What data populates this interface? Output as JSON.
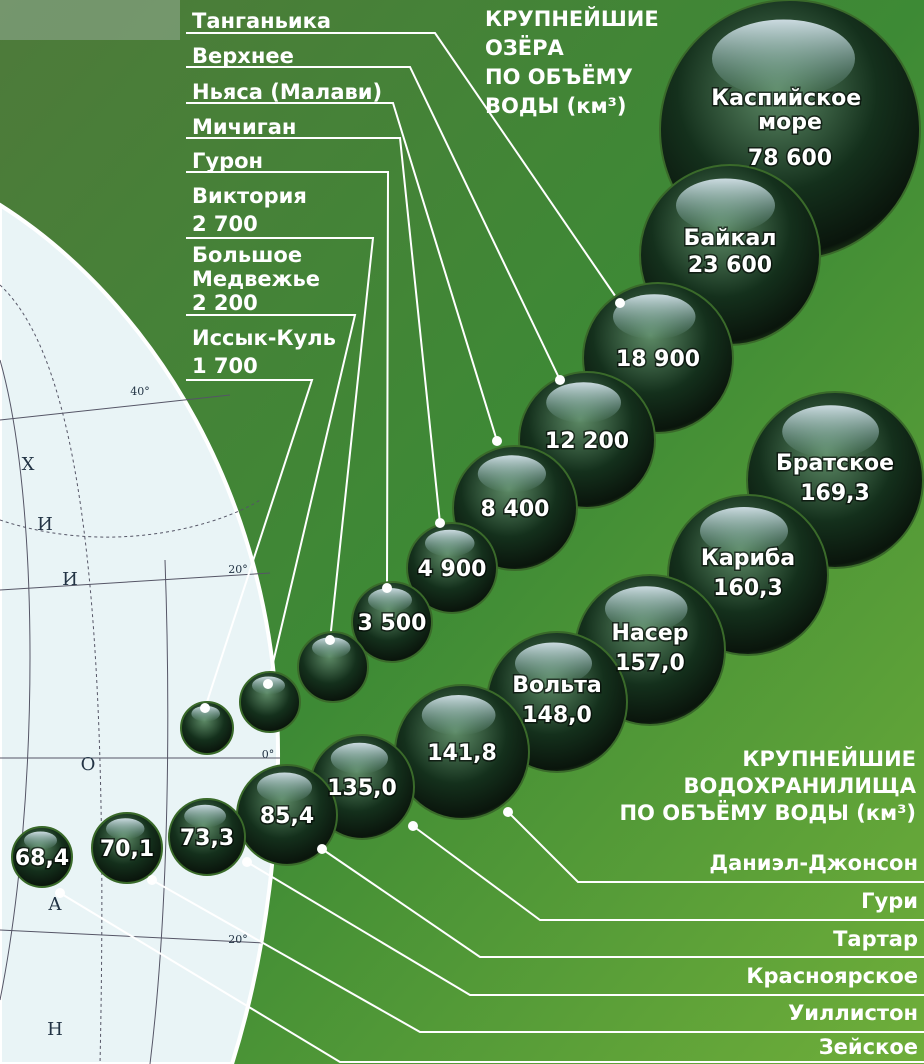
{
  "lakes": {
    "title": [
      "КРУПНЕЙШИЕ",
      "ОЗЁРА",
      "ПО ОБЪЁМУ",
      "ВОДЫ (км³)"
    ],
    "items": [
      {
        "name": "Каспийское море",
        "value": "78 600"
      },
      {
        "name": "Байкал",
        "value": "23 600"
      },
      {
        "name": "Танганьика",
        "value": "18 900"
      },
      {
        "name": "Верхнее",
        "value": "12 200"
      },
      {
        "name": "Ньяса (Малави)",
        "value": "8 400"
      },
      {
        "name": "Мичиган",
        "value": "4 900"
      },
      {
        "name": "Гурон",
        "value": "3 500"
      },
      {
        "name": "Виктория",
        "value": "2 700"
      },
      {
        "name": "Большое Медвежье",
        "value": "2 200"
      },
      {
        "name": "Иссык-Куль",
        "value": "1 700"
      }
    ]
  },
  "reservoirs": {
    "title": [
      "КРУПНЕЙШИЕ",
      "ВОДОХРАНИЛИЩА",
      "ПО ОБЪЁМУ ВОДЫ (км³)"
    ],
    "items": [
      {
        "name": "Братское",
        "value": "169,3"
      },
      {
        "name": "Кариба",
        "value": "160,3"
      },
      {
        "name": "Насер",
        "value": "157,0"
      },
      {
        "name": "Вольта",
        "value": "148,0"
      },
      {
        "name": "Даниэл-Джонсон",
        "value": "141,8"
      },
      {
        "name": "Гури",
        "value": "135,0"
      },
      {
        "name": "Тартар",
        "value": "85,4"
      },
      {
        "name": "Красноярское",
        "value": "73,3"
      },
      {
        "name": "Уиллистон",
        "value": "70,1"
      },
      {
        "name": "Зейское",
        "value": "68,4"
      }
    ]
  },
  "map": {
    "labels": [
      "40°",
      "20°",
      "0°",
      "20°",
      "Х",
      "И",
      "И",
      "О",
      "А",
      "Н"
    ]
  }
}
